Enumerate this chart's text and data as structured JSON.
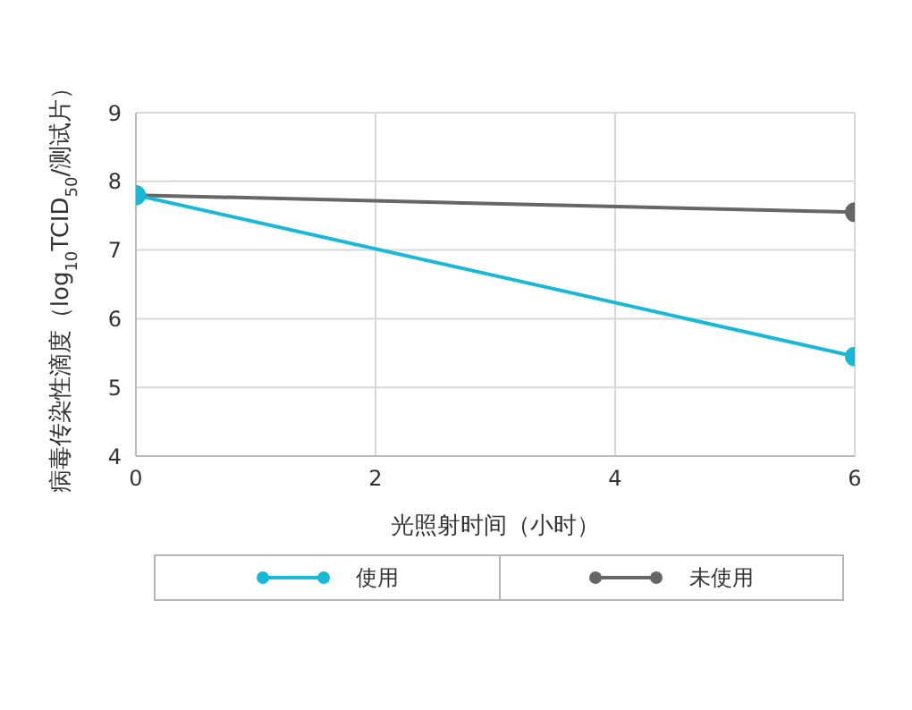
{
  "chart_data": {
    "type": "line",
    "xlabel": "光照射时间（小时）",
    "ylabel": "病毒传染性滴度（log$_{10}$TCID$_{50}$/测试片）",
    "x": [
      0,
      6
    ],
    "series": [
      {
        "name": "使用",
        "color": "#17b8d8",
        "values": [
          7.8,
          5.45
        ]
      },
      {
        "name": "未使用",
        "color": "#666666",
        "values": [
          7.8,
          7.55
        ]
      }
    ],
    "xlim": [
      0,
      6
    ],
    "xticks": [
      0,
      2,
      4,
      6
    ],
    "ylim": [
      4,
      9
    ],
    "yticks": [
      4,
      5,
      6,
      7,
      8,
      9
    ],
    "grid": true,
    "legend": "bottom",
    "marker": "circle",
    "line_style": "solid"
  }
}
